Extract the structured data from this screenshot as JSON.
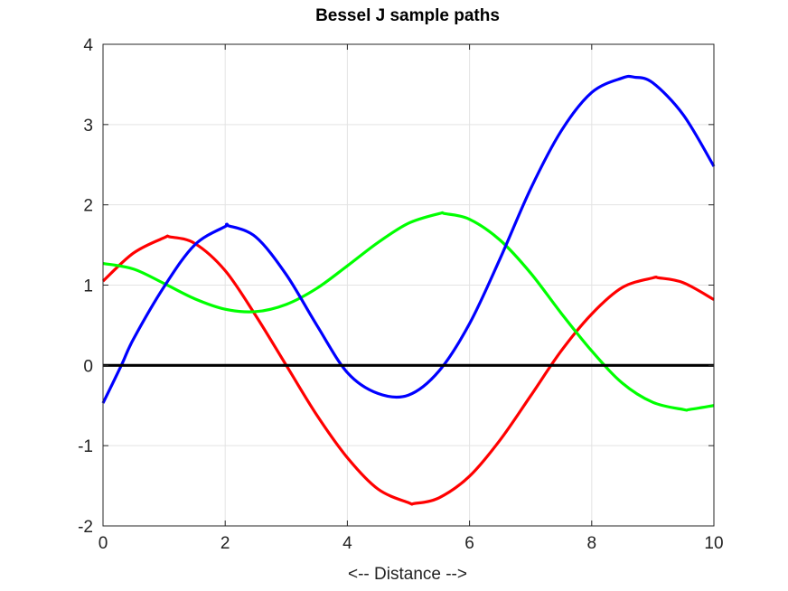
{
  "chart_data": {
    "type": "line",
    "title": "Bessel J sample paths",
    "xlabel": "<-- Distance -->",
    "ylabel": "",
    "xlim": [
      0,
      10
    ],
    "ylim": [
      -2,
      4
    ],
    "xticks": [
      "0",
      "2",
      "4",
      "6",
      "8",
      "10"
    ],
    "yticks": [
      "-2",
      "-1",
      "0",
      "1",
      "2",
      "3",
      "4"
    ],
    "grid": true,
    "series": [
      {
        "color": "#ff0000",
        "x": [
          0,
          0.5,
          1,
          1.1,
          1.5,
          2,
          2.5,
          3,
          3.5,
          4,
          4.5,
          5,
          5.1,
          5.5,
          6,
          6.5,
          7,
          7.5,
          8,
          8.5,
          9,
          9.1,
          9.5,
          10
        ],
        "y": [
          1.05,
          1.4,
          1.59,
          1.6,
          1.52,
          1.18,
          0.62,
          0.0,
          -0.62,
          -1.15,
          -1.54,
          -1.71,
          -1.72,
          -1.65,
          -1.38,
          -0.93,
          -0.38,
          0.18,
          0.64,
          0.97,
          1.09,
          1.09,
          1.03,
          0.82
        ]
      },
      {
        "color": "#00ff00",
        "x": [
          0,
          0.5,
          1,
          1.5,
          2,
          2.5,
          3,
          3.5,
          4,
          4.5,
          5,
          5.5,
          5.6,
          6,
          6.5,
          7,
          7.5,
          8,
          8.5,
          9,
          9.5,
          9.6,
          10
        ],
        "y": [
          1.27,
          1.2,
          1.02,
          0.83,
          0.7,
          0.67,
          0.76,
          0.96,
          1.24,
          1.53,
          1.77,
          1.89,
          1.89,
          1.82,
          1.56,
          1.15,
          0.65,
          0.18,
          -0.22,
          -0.46,
          -0.55,
          -0.55,
          -0.5
        ]
      },
      {
        "color": "#0000ff",
        "x": [
          0,
          0.3,
          0.5,
          1,
          1.5,
          2,
          2.05,
          2.5,
          3,
          3.5,
          4,
          4.5,
          5,
          5.5,
          6,
          6.5,
          7,
          7.5,
          8,
          8.5,
          8.7,
          9,
          9.5,
          10
        ],
        "y": [
          -0.47,
          0.0,
          0.33,
          0.98,
          1.5,
          1.73,
          1.74,
          1.6,
          1.13,
          0.5,
          -0.09,
          -0.35,
          -0.37,
          -0.07,
          0.52,
          1.33,
          2.2,
          2.92,
          3.4,
          3.58,
          3.59,
          3.52,
          3.12,
          2.48
        ]
      },
      {
        "color": "#000000",
        "x": [
          0,
          10
        ],
        "y": [
          0,
          0
        ]
      }
    ]
  }
}
